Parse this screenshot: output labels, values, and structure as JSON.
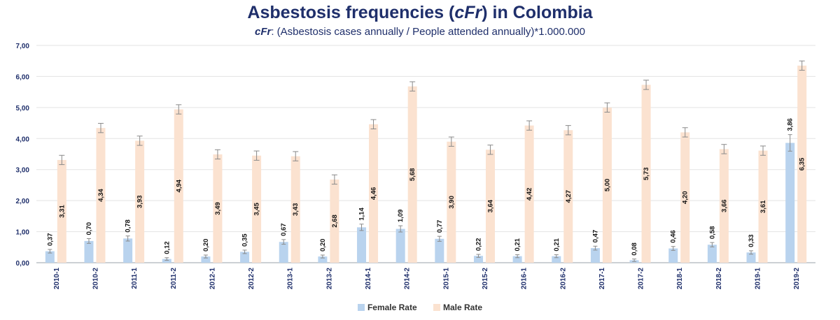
{
  "colors": {
    "female": "#b9d3ee",
    "male": "#fbe2d0",
    "error": "#8a8a8a",
    "axis": "#1f2f6b",
    "grid": "#e3e3e3"
  },
  "chart_data": {
    "type": "bar",
    "title": "Asbestosis frequencies (cFr) in Colombia",
    "title_parts": {
      "pre": "Asbestosis frequencies (",
      "italic": "cFr",
      "post": ") in Colombia"
    },
    "subtitle_term": "cFr",
    "subtitle_rest": ": (Asbestosis cases annually / People attended annually)*1.000.000",
    "ylim": [
      0,
      7
    ],
    "yticks": [
      "0,00",
      "1,00",
      "2,00",
      "3,00",
      "4,00",
      "5,00",
      "6,00",
      "7,00"
    ],
    "categories": [
      "2010-1",
      "2010-2",
      "2011-1",
      "2011-2",
      "2012-1",
      "2012-2",
      "2013-1",
      "2013-2",
      "2014-1",
      "2014-2",
      "2015-1",
      "2015-2",
      "2016-1",
      "2016-2",
      "2017-1",
      "2017-2",
      "2018-1",
      "2018-2",
      "2019-1",
      "2019-2"
    ],
    "series": [
      {
        "name": "Female Rate",
        "values": [
          0.37,
          0.7,
          0.78,
          0.12,
          0.2,
          0.35,
          0.67,
          0.2,
          1.14,
          1.09,
          0.77,
          0.22,
          0.21,
          0.21,
          0.47,
          0.08,
          0.46,
          0.58,
          0.33,
          3.86
        ],
        "labels": [
          "0,37",
          "0,70",
          "0,78",
          "0,12",
          "0,20",
          "0,35",
          "0,67",
          "0,20",
          "1,14",
          "1,09",
          "0,77",
          "0,22",
          "0,21",
          "0,21",
          "0,47",
          "0,08",
          "0,46",
          "0,58",
          "0,33",
          "3,86"
        ]
      },
      {
        "name": "Male Rate",
        "values": [
          3.31,
          4.34,
          3.93,
          4.94,
          3.49,
          3.45,
          3.43,
          2.68,
          4.46,
          5.68,
          3.9,
          3.64,
          4.42,
          4.27,
          5.0,
          5.73,
          4.2,
          3.66,
          3.61,
          6.35
        ],
        "labels": [
          "3,31",
          "4,34",
          "3,93",
          "4,94",
          "3,49",
          "3,45",
          "3,43",
          "2,68",
          "4,46",
          "5,68",
          "3,90",
          "3,64",
          "4,42",
          "4,27",
          "5,00",
          "5,73",
          "4,20",
          "3,66",
          "3,61",
          "6,35"
        ]
      }
    ]
  }
}
